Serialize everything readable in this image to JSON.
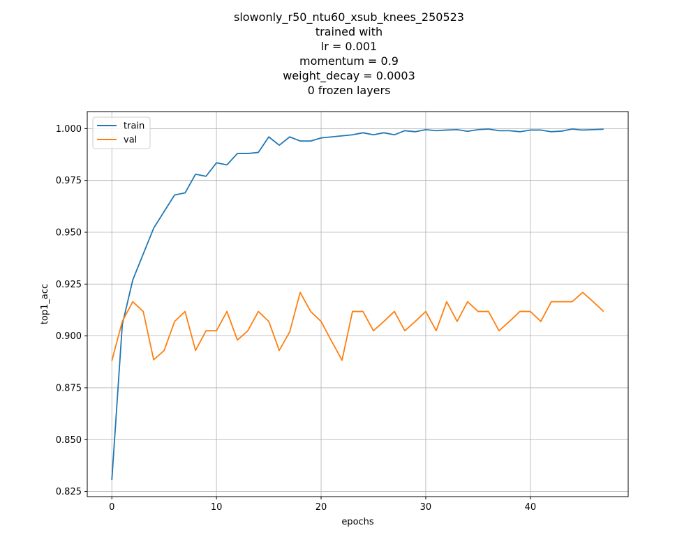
{
  "chart_data": {
    "type": "line",
    "title_lines": [
      "slowonly_r50_ntu60_xsub_knees_250523",
      "trained with",
      "lr = 0.001",
      "momentum = 0.9",
      "weight_decay = 0.0003",
      "0 frozen layers"
    ],
    "xlabel": "epochs",
    "ylabel": "top1_acc",
    "xlim": [
      -2.35,
      49.35
    ],
    "ylim": [
      0.8225,
      1.0082
    ],
    "xticks": [
      0,
      10,
      20,
      30,
      40
    ],
    "xtick_labels": [
      "0",
      "10",
      "20",
      "30",
      "40"
    ],
    "yticks": [
      0.825,
      0.85,
      0.875,
      0.9,
      0.925,
      0.95,
      0.975,
      1.0
    ],
    "ytick_labels": [
      "0.825",
      "0.850",
      "0.875",
      "0.900",
      "0.925",
      "0.950",
      "0.975",
      "1.000"
    ],
    "grid": true,
    "legend_position": "top-left",
    "x": [
      0,
      1,
      2,
      3,
      4,
      5,
      6,
      7,
      8,
      9,
      10,
      11,
      12,
      13,
      14,
      15,
      16,
      17,
      18,
      19,
      20,
      21,
      22,
      23,
      24,
      25,
      26,
      27,
      28,
      29,
      30,
      31,
      32,
      33,
      34,
      35,
      36,
      37,
      38,
      39,
      40,
      41,
      42,
      43,
      44,
      45,
      46,
      47
    ],
    "series": [
      {
        "name": "train",
        "color": "#1f77b4",
        "values": [
          0.8305,
          0.9055,
          0.927,
          0.9395,
          0.952,
          0.96,
          0.968,
          0.969,
          0.978,
          0.977,
          0.9835,
          0.9825,
          0.988,
          0.988,
          0.9885,
          0.996,
          0.992,
          0.996,
          0.994,
          0.994,
          0.9955,
          0.996,
          0.9965,
          0.997,
          0.998,
          0.997,
          0.998,
          0.997,
          0.999,
          0.9985,
          0.9995,
          0.999,
          0.9993,
          0.9995,
          0.9987,
          0.9995,
          0.9998,
          0.999,
          0.999,
          0.9985,
          0.9993,
          0.9993,
          0.9985,
          0.9988,
          0.9998,
          0.9993,
          0.9995,
          0.9997
        ]
      },
      {
        "name": "val",
        "color": "#ff7f0e",
        "values": [
          0.888,
          0.907,
          0.9165,
          0.9118,
          0.8885,
          0.893,
          0.907,
          0.9118,
          0.893,
          0.9025,
          0.9025,
          0.9118,
          0.898,
          0.9025,
          0.9118,
          0.907,
          0.893,
          0.902,
          0.921,
          0.9118,
          0.907,
          0.8975,
          0.8883,
          0.9118,
          0.9118,
          0.9025,
          0.907,
          0.9118,
          0.9025,
          0.907,
          0.9118,
          0.9025,
          0.9165,
          0.907,
          0.9165,
          0.9118,
          0.9118,
          0.9025,
          0.907,
          0.9118,
          0.9118,
          0.907,
          0.9165,
          0.9165,
          0.9165,
          0.921,
          0.9165,
          0.9118
        ]
      }
    ]
  }
}
